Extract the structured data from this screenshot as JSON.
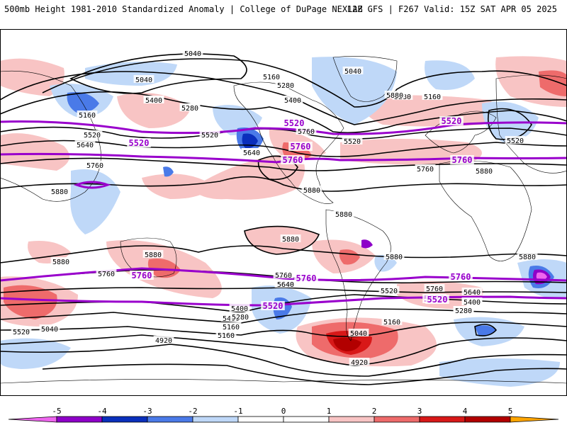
{
  "header": {
    "left": "500mb Height 1981-2010 Standardized Anomaly | College of DuPage NEXLAB",
    "right": "12Z GFS | F267 Valid: 15Z SAT APR 05 2025"
  },
  "colors": {
    "contour": "#000000",
    "highlight_contour": "#9900cc",
    "neg5": "#ee66ee",
    "neg4": "#8e00c8",
    "neg3": "#0a2fbc",
    "neg2": "#4a7ae8",
    "neg1": "#bfd8f8",
    "pos1": "#f8c4c4",
    "pos2": "#ee6b6b",
    "pos3": "#d81818",
    "pos4": "#b20000",
    "pos5": "#ffa500"
  },
  "colorbar": {
    "ticks": [
      "-5",
      "-4",
      "-3",
      "-2",
      "-1",
      "0",
      "1",
      "2",
      "3",
      "4",
      "5"
    ]
  },
  "contour_labels": [
    {
      "text": "5040",
      "highlight": false
    },
    {
      "text": "5040",
      "highlight": false
    },
    {
      "text": "5160",
      "highlight": false
    },
    {
      "text": "5040",
      "highlight": false
    },
    {
      "text": "5160",
      "highlight": false
    },
    {
      "text": "5280",
      "highlight": false
    },
    {
      "text": "5400",
      "highlight": false
    },
    {
      "text": "5280",
      "highlight": false
    },
    {
      "text": "5160",
      "highlight": false
    },
    {
      "text": "5520",
      "highlight": false
    },
    {
      "text": "5520",
      "highlight": false
    },
    {
      "text": "5520",
      "highlight": true
    },
    {
      "text": "5640",
      "highlight": false
    },
    {
      "text": "5640",
      "highlight": false
    },
    {
      "text": "5760",
      "highlight": false
    },
    {
      "text": "5760",
      "highlight": true
    },
    {
      "text": "5880",
      "highlight": false
    },
    {
      "text": "5760",
      "highlight": false
    },
    {
      "text": "5880",
      "highlight": false
    },
    {
      "text": "5520",
      "highlight": true
    },
    {
      "text": "5760",
      "highlight": true
    },
    {
      "text": "5520",
      "highlight": false
    },
    {
      "text": "5880",
      "highlight": false
    },
    {
      "text": "5400",
      "highlight": false
    },
    {
      "text": "5280",
      "highlight": false
    },
    {
      "text": "5160",
      "highlight": false
    },
    {
      "text": "5280",
      "highlight": false
    },
    {
      "text": "5400",
      "highlight": false
    },
    {
      "text": "5520",
      "highlight": true
    },
    {
      "text": "5640",
      "highlight": false
    },
    {
      "text": "5520",
      "highlight": false
    },
    {
      "text": "5760",
      "highlight": false
    },
    {
      "text": "5760",
      "highlight": true
    },
    {
      "text": "5880",
      "highlight": false
    },
    {
      "text": "5880",
      "highlight": false
    },
    {
      "text": "5880",
      "highlight": false
    },
    {
      "text": "5880",
      "highlight": false
    },
    {
      "text": "5880",
      "highlight": false
    },
    {
      "text": "5880",
      "highlight": false
    },
    {
      "text": "5880",
      "highlight": false
    },
    {
      "text": "5760",
      "highlight": false
    },
    {
      "text": "5760",
      "highlight": true
    },
    {
      "text": "5640",
      "highlight": false
    },
    {
      "text": "5520",
      "highlight": true
    },
    {
      "text": "5400",
      "highlight": false
    },
    {
      "text": "5160",
      "highlight": false
    },
    {
      "text": "5040",
      "highlight": false
    },
    {
      "text": "5760",
      "highlight": false
    },
    {
      "text": "5760",
      "highlight": true
    },
    {
      "text": "5640",
      "highlight": false
    },
    {
      "text": "5520",
      "highlight": false
    },
    {
      "text": "5520",
      "highlight": true
    },
    {
      "text": "5400",
      "highlight": false
    },
    {
      "text": "5280",
      "highlight": false
    },
    {
      "text": "5160",
      "highlight": false
    },
    {
      "text": "5040",
      "highlight": false
    },
    {
      "text": "4920",
      "highlight": false
    },
    {
      "text": "5400",
      "highlight": false
    },
    {
      "text": "5280",
      "highlight": false
    },
    {
      "text": "5160",
      "highlight": false
    },
    {
      "text": "4920",
      "highlight": false
    },
    {
      "text": "5520",
      "highlight": false
    },
    {
      "text": "5760",
      "highlight": false
    },
    {
      "text": "5760",
      "highlight": true
    },
    {
      "text": "5640",
      "highlight": false
    },
    {
      "text": "5520",
      "highlight": true
    },
    {
      "text": "5400",
      "highlight": false
    },
    {
      "text": "5280",
      "highlight": false
    }
  ]
}
